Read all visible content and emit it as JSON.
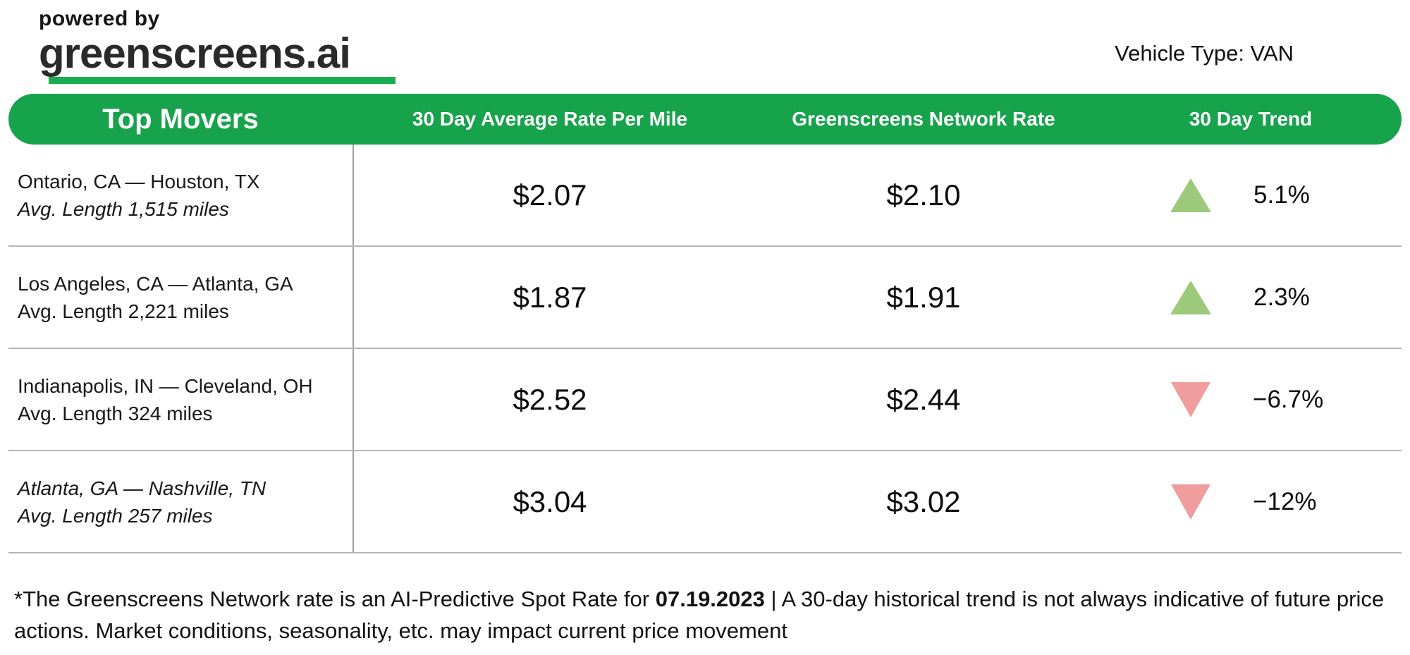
{
  "header": {
    "powered_by": "powered by",
    "brand": "greenscreens.ai",
    "vehicle_type": "Vehicle Type: VAN"
  },
  "table": {
    "columns": [
      "Top Movers",
      "30 Day Average Rate Per Mile",
      "Greenscreens Network Rate",
      "30 Day Trend"
    ],
    "rows": [
      {
        "lane": "Ontario, CA — Houston, TX",
        "avg_length": "Avg. Length 1,515 miles",
        "avg_rate": "$2.07",
        "network_rate": "$2.10",
        "trend": "5.1%",
        "direction": "up",
        "lane_italic": false,
        "length_italic": true
      },
      {
        "lane": "Los Angeles, CA — Atlanta, GA",
        "avg_length": "Avg. Length 2,221 miles",
        "avg_rate": "$1.87",
        "network_rate": "$1.91",
        "trend": "2.3%",
        "direction": "up",
        "lane_italic": false,
        "length_italic": false
      },
      {
        "lane": "Indianapolis, IN — Cleveland, OH",
        "avg_length": "Avg. Length 324 miles",
        "avg_rate": "$2.52",
        "network_rate": "$2.44",
        "trend": "−6.7%",
        "direction": "down",
        "lane_italic": false,
        "length_italic": false
      },
      {
        "lane": "Atlanta, GA — Nashville, TN",
        "avg_length": "Avg. Length 257 miles",
        "avg_rate": "$3.04",
        "network_rate": "$3.02",
        "trend": "−12%",
        "direction": "down",
        "lane_italic": true,
        "length_italic": true
      }
    ]
  },
  "footer": {
    "prefix": "*The Greenscreens Network rate is an AI-Predictive Spot Rate for ",
    "date": "07.19.2023",
    "suffix": " | A 30-day historical trend is not always indicative of future price actions. Market conditions, seasonality, etc. may impact current price movement"
  },
  "colors": {
    "header_green": "#17a24c",
    "logo_underline_green": "#1aad52",
    "trend_up": "#9dc97a",
    "trend_down": "#f09d9d"
  }
}
